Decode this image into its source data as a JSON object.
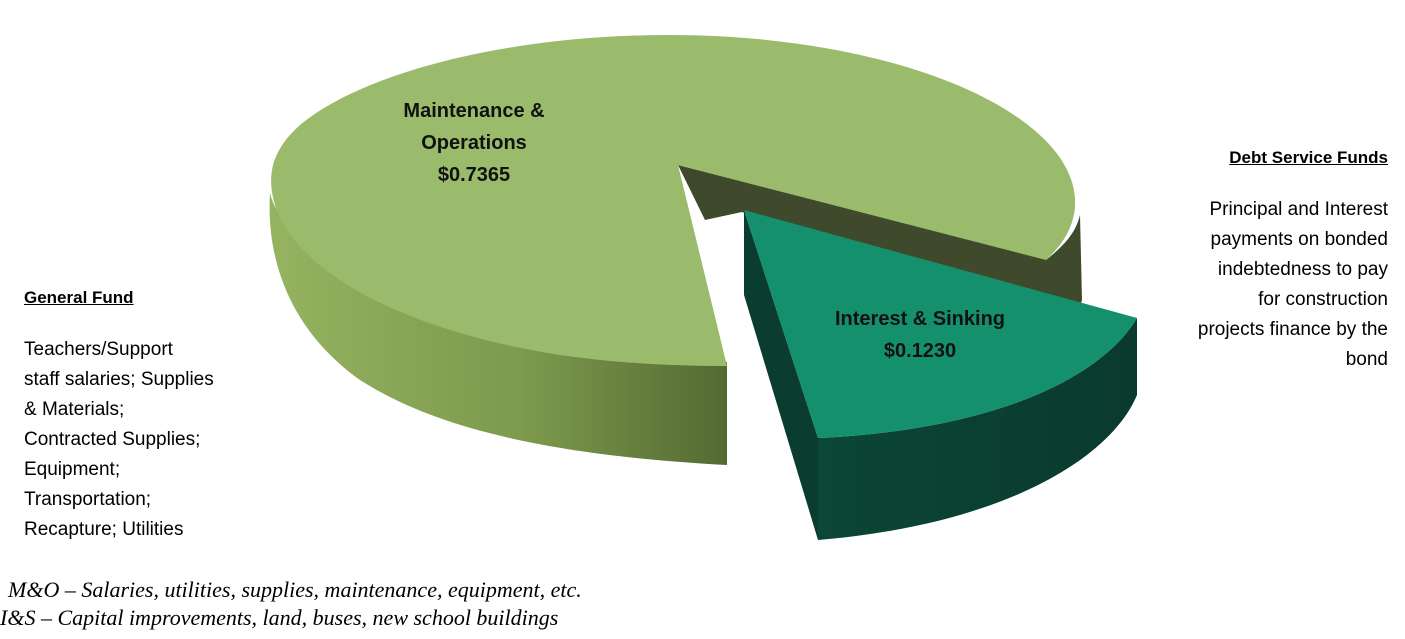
{
  "chart_data": {
    "type": "pie",
    "title": "",
    "style": "3d-exploded",
    "slices": [
      {
        "label_lines": [
          "Maintenance &",
          "Operations",
          "$0.7365"
        ],
        "name": "Maintenance & Operations",
        "value": 0.7365,
        "color": "#9bbb6c"
      },
      {
        "label_lines": [
          "Interest & Sinking",
          "$0.1230"
        ],
        "name": "Interest & Sinking",
        "value": 0.123,
        "color": "#14916c"
      }
    ]
  },
  "general_fund": {
    "title": "General Fund",
    "lines": [
      "Teachers/Support",
      "staff salaries; Supplies",
      "& Materials;",
      "Contracted Supplies;",
      "Equipment;",
      "Transportation;",
      "Recapture; Utilities"
    ]
  },
  "debt_service": {
    "title": "Debt Service Funds",
    "lines": [
      "Principal and Interest",
      "payments on bonded",
      "indebtedness to pay",
      "for construction",
      "projects finance by the",
      "bond"
    ]
  },
  "notes": [
    "M&O – Salaries, utilities, supplies, maintenance, equipment, etc.",
    "I&S – Capital improvements, land, buses, new school buildings"
  ]
}
